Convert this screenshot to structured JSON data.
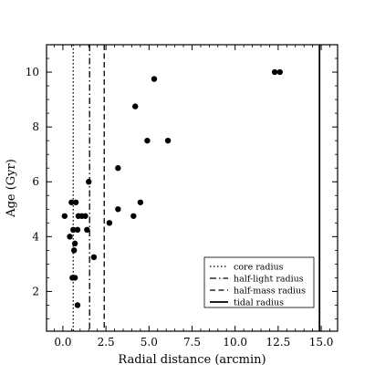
{
  "chart_data": {
    "type": "scatter",
    "xlabel": "Radial distance (arcmin)",
    "ylabel": "Age (Gyr)",
    "xlim": [
      -0.95,
      15.95
    ],
    "ylim": [
      0.55,
      11.0
    ],
    "x_ticks": [
      0.0,
      2.5,
      5.0,
      7.5,
      10.0,
      12.5,
      15.0
    ],
    "x_tick_labels": [
      "0.0",
      "2.5",
      "5.0",
      "7.5",
      "10.0",
      "12.5",
      "15.0"
    ],
    "y_ticks": [
      2,
      4,
      6,
      8,
      10
    ],
    "y_tick_labels": [
      "2",
      "4",
      "6",
      "8",
      "10"
    ],
    "grid": false,
    "legend_position": "lower-right",
    "series": [
      {
        "marker": "circle",
        "color": "#000000",
        "points": [
          {
            "x": 0.1,
            "y": 4.75
          },
          {
            "x": 0.4,
            "y": 4.0
          },
          {
            "x": 0.5,
            "y": 5.25
          },
          {
            "x": 0.55,
            "y": 2.5
          },
          {
            "x": 0.6,
            "y": 4.25
          },
          {
            "x": 0.65,
            "y": 3.5
          },
          {
            "x": 0.7,
            "y": 3.75
          },
          {
            "x": 0.7,
            "y": 2.5
          },
          {
            "x": 0.75,
            "y": 5.25
          },
          {
            "x": 0.85,
            "y": 1.5
          },
          {
            "x": 0.85,
            "y": 4.25
          },
          {
            "x": 0.9,
            "y": 4.75
          },
          {
            "x": 1.1,
            "y": 4.75
          },
          {
            "x": 1.3,
            "y": 4.75
          },
          {
            "x": 1.4,
            "y": 4.25
          },
          {
            "x": 1.5,
            "y": 6.0
          },
          {
            "x": 1.8,
            "y": 3.25
          },
          {
            "x": 2.7,
            "y": 4.5
          },
          {
            "x": 3.2,
            "y": 5.0
          },
          {
            "x": 3.2,
            "y": 6.5
          },
          {
            "x": 4.1,
            "y": 4.75
          },
          {
            "x": 4.2,
            "y": 8.75
          },
          {
            "x": 4.5,
            "y": 5.25
          },
          {
            "x": 4.9,
            "y": 7.5
          },
          {
            "x": 5.3,
            "y": 9.75
          },
          {
            "x": 6.1,
            "y": 7.5
          },
          {
            "x": 12.3,
            "y": 10.0
          },
          {
            "x": 12.6,
            "y": 10.0
          }
        ]
      }
    ],
    "vlines": [
      {
        "name": "core radius",
        "x": 0.6,
        "style": "dotted"
      },
      {
        "name": "half-light radius",
        "x": 1.55,
        "style": "dashdot"
      },
      {
        "name": "half-mass radius",
        "x": 2.4,
        "style": "dashed"
      },
      {
        "name": "tidal radius",
        "x": 14.9,
        "style": "solid"
      }
    ]
  }
}
